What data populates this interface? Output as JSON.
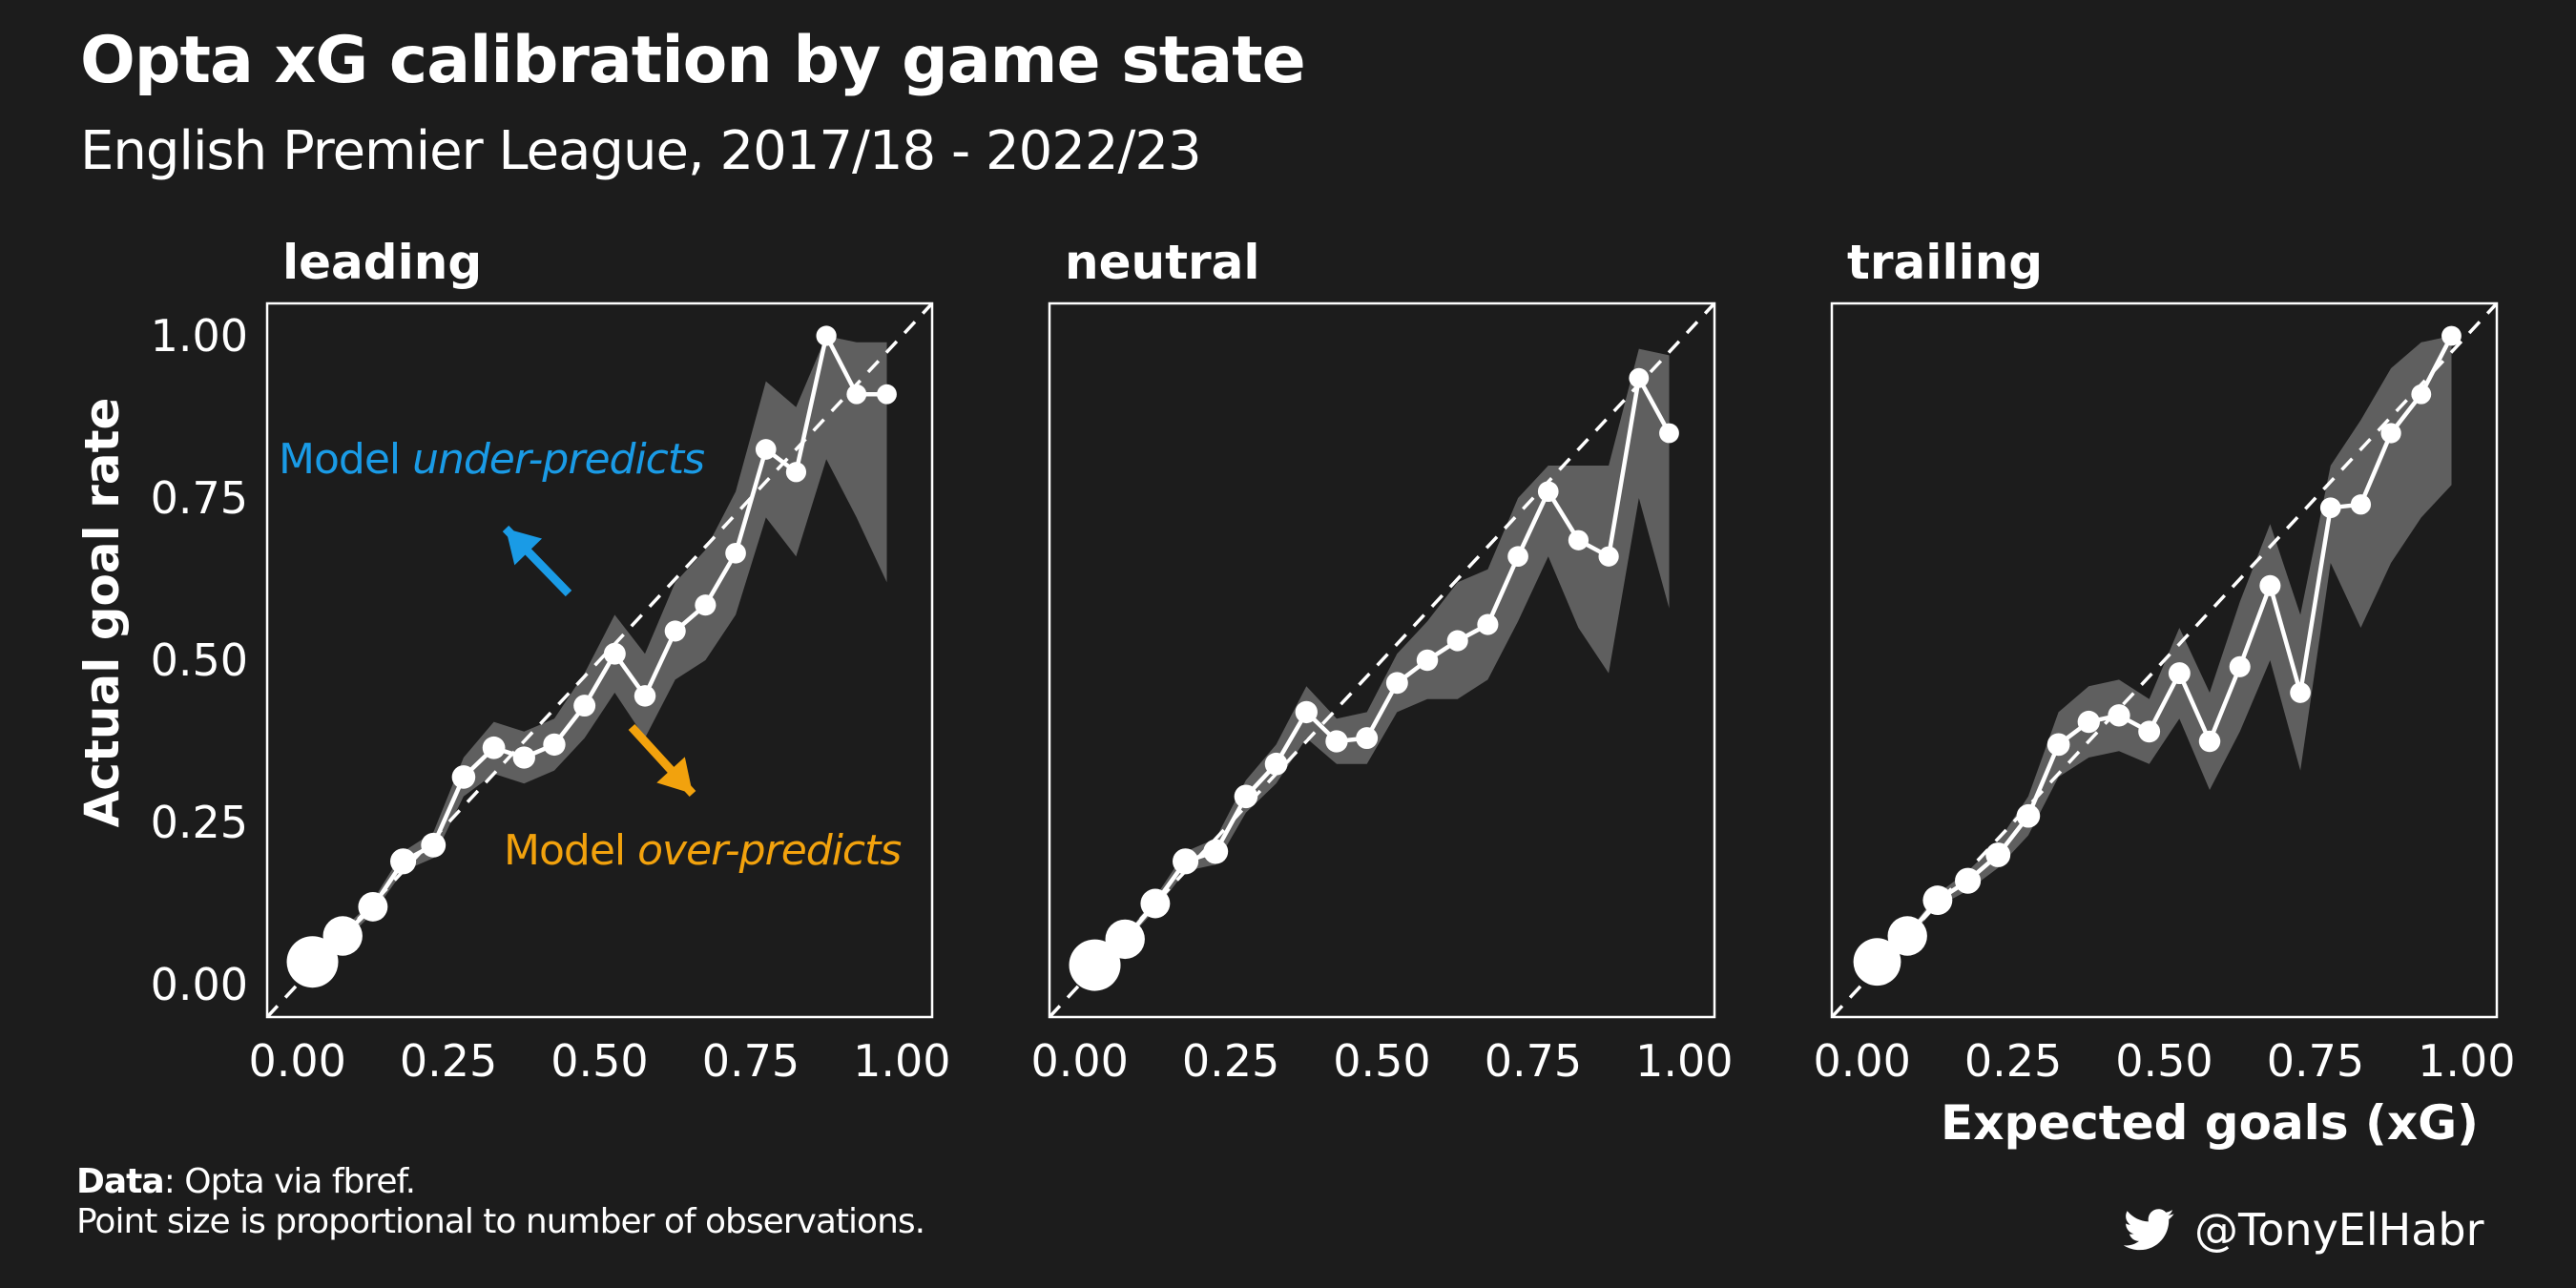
{
  "title": "Opta xG calibration by game state",
  "subtitle": "English Premier League, 2017/18 - 2022/23",
  "caption": {
    "data_label": "Data",
    "data_text": ": Opta via fbref.",
    "note": "Point size is proportional to number of observations."
  },
  "credit": {
    "icon": "twitter-bird-icon",
    "handle": "@TonyElHabr"
  },
  "annotations": {
    "under": {
      "prefix": "Model ",
      "emph": "under-predicts",
      "color": "#1a9be6"
    },
    "over": {
      "prefix": "Model ",
      "emph": "over-predicts",
      "color": "#f2a20d"
    }
  },
  "colors": {
    "background": "#1c1c1c",
    "ribbon": "#5f5f5f",
    "line": "#ffffff",
    "reference": "#ffffff"
  },
  "chart_data": [
    {
      "type": "line",
      "panel": "leading",
      "xlabel": "",
      "ylabel": "Actual goal rate",
      "xlim": [
        -0.05,
        1.05
      ],
      "ylim": [
        -0.05,
        1.05
      ],
      "xticks": [
        "0.00",
        "0.25",
        "0.50",
        "0.75",
        "1.00"
      ],
      "yticks": [
        "0.00",
        "0.25",
        "0.50",
        "0.75",
        "1.00"
      ],
      "reference_line": "y = x",
      "point_size": "proportional to number of observations",
      "x": [
        0.025,
        0.075,
        0.125,
        0.175,
        0.225,
        0.275,
        0.325,
        0.375,
        0.425,
        0.475,
        0.525,
        0.575,
        0.625,
        0.675,
        0.725,
        0.775,
        0.825,
        0.875,
        0.925,
        0.975
      ],
      "y": [
        0.035,
        0.075,
        0.12,
        0.19,
        0.215,
        0.32,
        0.365,
        0.35,
        0.37,
        0.43,
        0.51,
        0.445,
        0.545,
        0.585,
        0.665,
        0.825,
        0.79,
        1.0,
        0.91,
        0.91
      ],
      "lower": [
        0.03,
        0.065,
        0.11,
        0.175,
        0.195,
        0.29,
        0.325,
        0.31,
        0.33,
        0.38,
        0.45,
        0.38,
        0.47,
        0.5,
        0.57,
        0.72,
        0.66,
        0.81,
        0.72,
        0.62
      ],
      "upper": [
        0.04,
        0.085,
        0.13,
        0.205,
        0.235,
        0.35,
        0.405,
        0.39,
        0.41,
        0.48,
        0.57,
        0.51,
        0.62,
        0.67,
        0.76,
        0.93,
        0.89,
        1.0,
        0.99,
        0.99
      ],
      "size": [
        1.0,
        0.7,
        0.45,
        0.36,
        0.33,
        0.3,
        0.28,
        0.27,
        0.27,
        0.26,
        0.26,
        0.25,
        0.24,
        0.24,
        0.23,
        0.23,
        0.22,
        0.22,
        0.21,
        0.21
      ]
    },
    {
      "type": "line",
      "panel": "neutral",
      "xlabel": "",
      "ylabel": "",
      "xlim": [
        -0.05,
        1.05
      ],
      "ylim": [
        -0.05,
        1.05
      ],
      "xticks": [
        "0.00",
        "0.25",
        "0.50",
        "0.75",
        "1.00"
      ],
      "yticks": [],
      "reference_line": "y = x",
      "point_size": "proportional to number of observations",
      "x": [
        0.025,
        0.075,
        0.125,
        0.175,
        0.225,
        0.275,
        0.325,
        0.375,
        0.425,
        0.475,
        0.525,
        0.575,
        0.625,
        0.675,
        0.725,
        0.775,
        0.825,
        0.875,
        0.925,
        0.975
      ],
      "y": [
        0.03,
        0.07,
        0.125,
        0.19,
        0.205,
        0.29,
        0.34,
        0.42,
        0.375,
        0.38,
        0.465,
        0.5,
        0.53,
        0.555,
        0.66,
        0.76,
        0.685,
        0.66,
        0.935,
        0.85
      ],
      "lower": [
        0.027,
        0.065,
        0.115,
        0.175,
        0.185,
        0.265,
        0.31,
        0.38,
        0.34,
        0.34,
        0.42,
        0.44,
        0.44,
        0.47,
        0.56,
        0.66,
        0.55,
        0.48,
        0.75,
        0.58
      ],
      "upper": [
        0.033,
        0.075,
        0.135,
        0.205,
        0.225,
        0.315,
        0.37,
        0.46,
        0.41,
        0.42,
        0.51,
        0.56,
        0.62,
        0.64,
        0.75,
        0.8,
        0.8,
        0.8,
        0.98,
        0.97
      ],
      "size": [
        1.0,
        0.7,
        0.45,
        0.36,
        0.33,
        0.3,
        0.28,
        0.27,
        0.27,
        0.26,
        0.26,
        0.25,
        0.24,
        0.24,
        0.23,
        0.23,
        0.22,
        0.22,
        0.21,
        0.21
      ]
    },
    {
      "type": "line",
      "panel": "trailing",
      "xlabel": "Expected goals (xG)",
      "ylabel": "",
      "xlim": [
        -0.05,
        1.05
      ],
      "ylim": [
        -0.05,
        1.05
      ],
      "xticks": [
        "0.00",
        "0.25",
        "0.50",
        "0.75",
        "1.00"
      ],
      "yticks": [],
      "reference_line": "y = x",
      "point_size": "proportional to number of observations",
      "x": [
        0.025,
        0.075,
        0.125,
        0.175,
        0.225,
        0.275,
        0.325,
        0.375,
        0.425,
        0.475,
        0.525,
        0.575,
        0.625,
        0.675,
        0.725,
        0.775,
        0.825,
        0.875,
        0.925,
        0.975
      ],
      "y": [
        0.035,
        0.075,
        0.13,
        0.16,
        0.2,
        0.26,
        0.37,
        0.405,
        0.415,
        0.39,
        0.48,
        0.375,
        0.49,
        0.615,
        0.45,
        0.735,
        0.74,
        0.85,
        0.91,
        1.0
      ],
      "lower": [
        0.03,
        0.07,
        0.12,
        0.145,
        0.18,
        0.23,
        0.32,
        0.35,
        0.36,
        0.34,
        0.41,
        0.3,
        0.39,
        0.5,
        0.33,
        0.65,
        0.55,
        0.65,
        0.72,
        0.77
      ],
      "upper": [
        0.04,
        0.08,
        0.14,
        0.175,
        0.22,
        0.29,
        0.42,
        0.46,
        0.47,
        0.44,
        0.55,
        0.45,
        0.59,
        0.71,
        0.57,
        0.8,
        0.87,
        0.95,
        0.99,
        1.0
      ],
      "size": [
        0.9,
        0.7,
        0.45,
        0.36,
        0.33,
        0.3,
        0.28,
        0.27,
        0.27,
        0.26,
        0.26,
        0.25,
        0.24,
        0.24,
        0.23,
        0.23,
        0.22,
        0.22,
        0.21,
        0.21
      ]
    }
  ]
}
